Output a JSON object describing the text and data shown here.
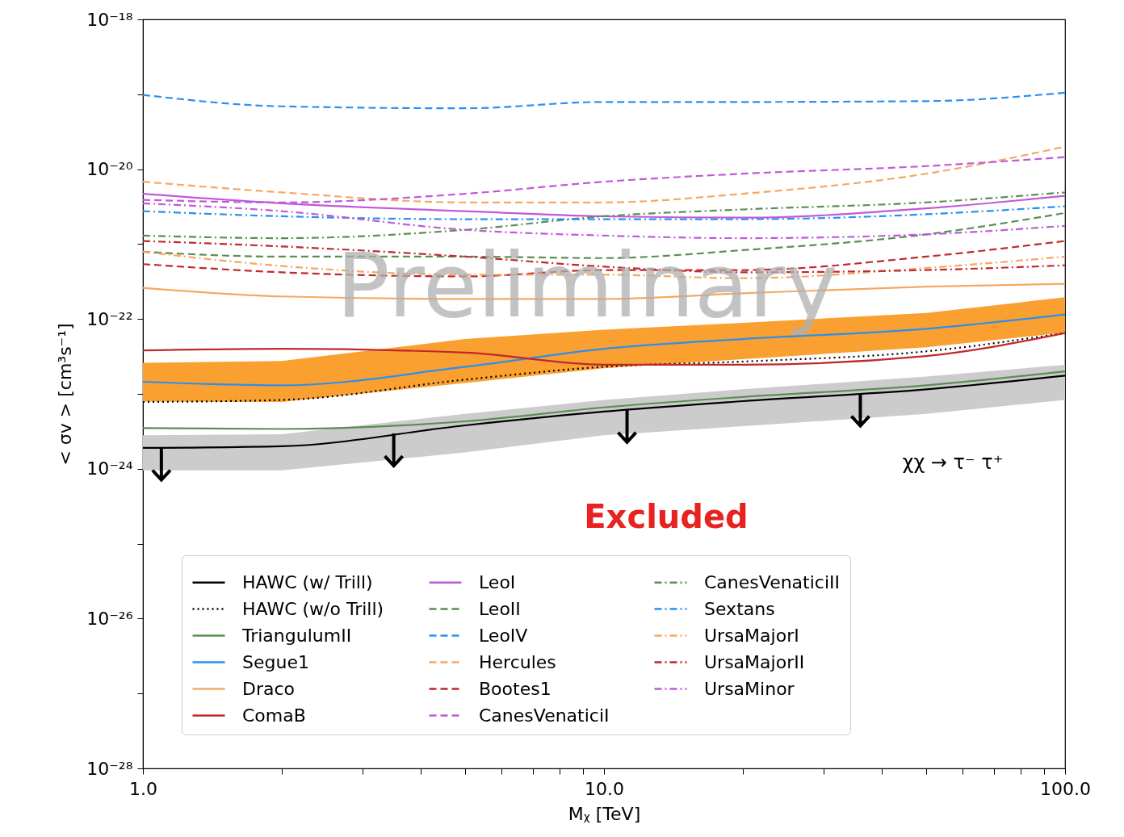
{
  "chart_data": {
    "type": "line",
    "xlabel": "Mᵪ [TeV]",
    "ylabel": "< σv > [cm³s⁻¹]",
    "log": "xy",
    "grid": false,
    "legend": "bottom",
    "xlim": [
      1,
      100
    ],
    "ylim": [
      1e-28,
      1e-18
    ],
    "xticks": [
      {
        "value": 1,
        "label": "1.0"
      },
      {
        "value": 2,
        "label": null
      },
      {
        "value": 3,
        "label": null
      },
      {
        "value": 4,
        "label": null
      },
      {
        "value": 5,
        "label": null
      },
      {
        "value": 6,
        "label": null
      },
      {
        "value": 7,
        "label": null
      },
      {
        "value": 8,
        "label": null
      },
      {
        "value": 9,
        "label": null
      },
      {
        "value": 10,
        "label": "10.0"
      },
      {
        "value": 20,
        "label": null
      },
      {
        "value": 30,
        "label": null
      },
      {
        "value": 40,
        "label": null
      },
      {
        "value": 50,
        "label": null
      },
      {
        "value": 60,
        "label": null
      },
      {
        "value": 70,
        "label": null
      },
      {
        "value": 80,
        "label": null
      },
      {
        "value": 90,
        "label": null
      },
      {
        "value": 100,
        "label": "100.0"
      }
    ],
    "yticks": [
      {
        "value": 1e-28,
        "label": "10⁻²⁸"
      },
      {
        "value": 1e-27,
        "label": null
      },
      {
        "value": 1e-26,
        "label": "10⁻²⁶"
      },
      {
        "value": 1e-25,
        "label": null
      },
      {
        "value": 1e-24,
        "label": "10⁻²⁴"
      },
      {
        "value": 1e-23,
        "label": null
      },
      {
        "value": 1e-22,
        "label": "10⁻²²"
      },
      {
        "value": 1e-21,
        "label": null
      },
      {
        "value": 1e-20,
        "label": "10⁻²⁰"
      },
      {
        "value": 1e-19,
        "label": null
      },
      {
        "value": 1e-18,
        "label": "10⁻¹⁸"
      }
    ],
    "x": [
      1,
      2,
      5,
      10,
      20,
      50,
      100
    ],
    "series": [
      {
        "name": "HAWC (w/ Trill)",
        "color": "#000000",
        "line_style": "solid",
        "values": [
          1.9e-24,
          2e-24,
          3.8e-24,
          5.8e-24,
          8e-24,
          1.15e-23,
          1.75e-23
        ],
        "lower": [
          9.5e-25,
          9.5e-25,
          1.65e-24,
          2.8e-24,
          3.7e-24,
          5.4e-24,
          8.3e-24
        ],
        "upper": [
          2.8e-24,
          2.9e-24,
          5.4e-24,
          8.3e-24,
          1.15e-23,
          1.7e-23,
          2.45e-23
        ]
      },
      {
        "name": "HAWC (w/o Trill)",
        "color": "#000000",
        "line_style": "dotted",
        "values": [
          7.8e-24,
          8.3e-24,
          1.55e-23,
          2.3e-23,
          2.7e-23,
          3.7e-23,
          6.5e-23
        ]
      },
      {
        "name": "TriangulumII",
        "color": "#5a8f52",
        "line_style": "solid",
        "values": [
          3.5e-24,
          3.4e-24,
          4.3e-24,
          6.6e-24,
          9.1e-24,
          1.3e-23,
          2e-23
        ]
      },
      {
        "name": "Segue1",
        "color": "#2b8ff0",
        "line_style": "solid",
        "values": [
          1.45e-23,
          1.3e-23,
          2.3e-23,
          4e-23,
          5.4e-23,
          7.4e-23,
          1.15e-22
        ],
        "lower": [
          7.9e-24,
          7.8e-24,
          1.4e-23,
          2.2e-23,
          2.9e-23,
          4.2e-23,
          6.6e-23
        ],
        "upper": [
          2.6e-23,
          2.75e-23,
          5.4e-23,
          7.2e-23,
          8.9e-23,
          1.2e-22,
          1.95e-22
        ]
      },
      {
        "name": "Draco",
        "color": "#f5a862",
        "line_style": "solid",
        "values": [
          2.6e-22,
          2e-22,
          1.85e-22,
          1.85e-22,
          2.2e-22,
          2.7e-22,
          2.95e-22
        ]
      },
      {
        "name": "ComaB",
        "color": "#c0282d",
        "line_style": "solid",
        "values": [
          3.8e-23,
          4e-23,
          3.55e-23,
          2.45e-23,
          2.45e-23,
          3.2e-23,
          6.5e-23
        ]
      },
      {
        "name": "LeoI",
        "color": "#c05ad8",
        "line_style": "solid",
        "values": [
          4.7e-21,
          3.5e-21,
          2.75e-21,
          2.35e-21,
          2.25e-21,
          3e-21,
          4.4e-21
        ]
      },
      {
        "name": "LeoII",
        "color": "#5a8f52",
        "line_style": "dashed",
        "values": [
          7.9e-22,
          6.8e-22,
          6.8e-22,
          6.5e-22,
          8.3e-22,
          1.35e-21,
          2.6e-21
        ]
      },
      {
        "name": "LeoIV",
        "color": "#2b8ff0",
        "line_style": "dashed",
        "values": [
          9.8e-20,
          6.9e-20,
          6.5e-20,
          7.9e-20,
          7.9e-20,
          8.1e-20,
          1.05e-19
        ]
      },
      {
        "name": "Hercules",
        "color": "#f5a862",
        "line_style": "dashed",
        "values": [
          6.8e-21,
          4.9e-21,
          3.6e-21,
          3.6e-21,
          4.7e-21,
          8.7e-21,
          2e-20
        ]
      },
      {
        "name": "Bootes1",
        "color": "#c0282d",
        "line_style": "dashed",
        "values": [
          5.4e-22,
          4.2e-22,
          3.7e-22,
          4.5e-22,
          4.5e-22,
          6.8e-22,
          1.1e-21
        ]
      },
      {
        "name": "CanesVenaticiI",
        "color": "#c05ad8",
        "line_style": "dashed",
        "values": [
          3.9e-21,
          3.6e-21,
          4.7e-21,
          6.8e-21,
          8.7e-21,
          1.1e-20,
          1.45e-20
        ]
      },
      {
        "name": "CanesVenaticiII",
        "color": "#5a8f52",
        "line_style": "dashdot",
        "values": [
          1.3e-21,
          1.2e-21,
          1.55e-21,
          2.35e-21,
          2.9e-21,
          3.6e-21,
          4.9e-21
        ]
      },
      {
        "name": "Sextans",
        "color": "#2b8ff0",
        "line_style": "dashdot",
        "values": [
          2.75e-21,
          2.35e-21,
          2.15e-21,
          2.15e-21,
          2.15e-21,
          2.5e-21,
          3.2e-21
        ]
      },
      {
        "name": "UrsaMajorI",
        "color": "#f5a862",
        "line_style": "dashdot",
        "values": [
          7.9e-22,
          5.1e-22,
          3.9e-22,
          3.9e-22,
          3.5e-22,
          4.8e-22,
          6.8e-22
        ]
      },
      {
        "name": "UrsaMajorII",
        "color": "#c0282d",
        "line_style": "dashdot",
        "values": [
          1.1e-21,
          9.3e-22,
          6.8e-22,
          5e-22,
          4.2e-22,
          4.5e-22,
          5.2e-22
        ]
      },
      {
        "name": "UrsaMinor",
        "color": "#c05ad8",
        "line_style": "dashdot",
        "values": [
          3.5e-21,
          2.75e-21,
          1.55e-21,
          1.3e-21,
          1.2e-21,
          1.35e-21,
          1.75e-21
        ]
      }
    ],
    "annotations": [
      "χχ → τ⁻ τ⁺",
      "Excluded",
      "Preliminary"
    ]
  }
}
